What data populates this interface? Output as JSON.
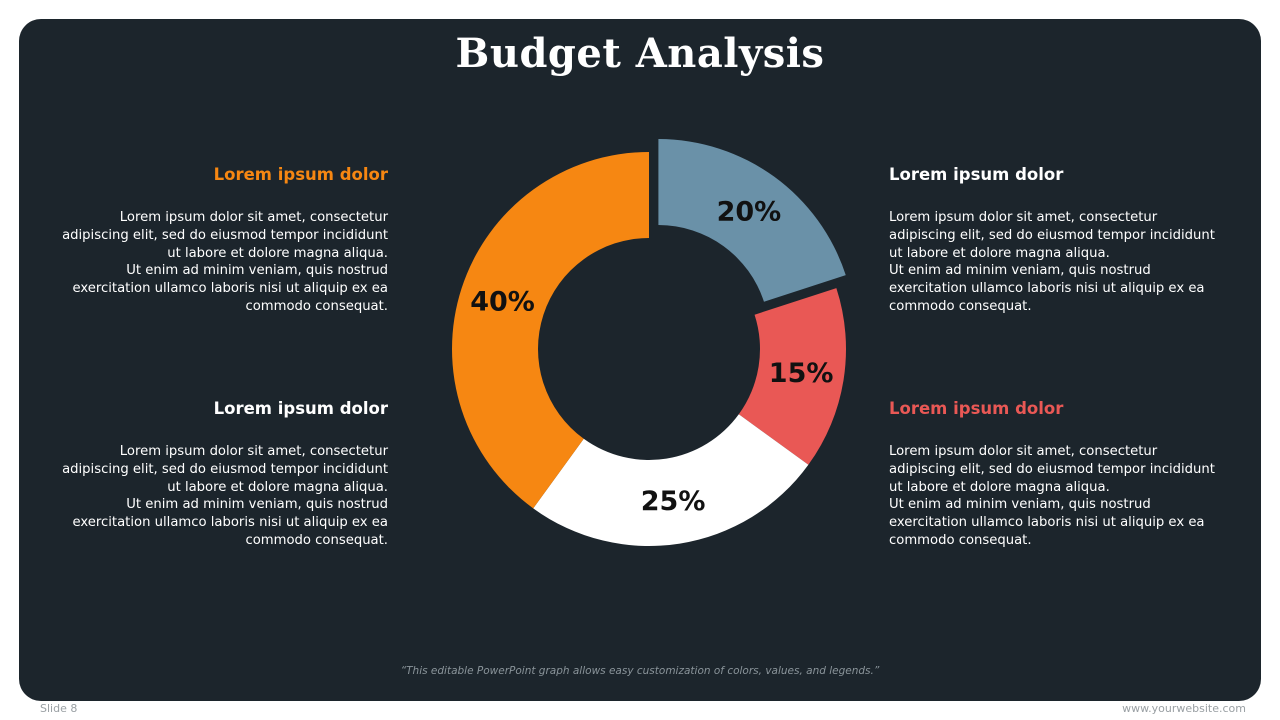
{
  "title": "Budget Analysis",
  "blocks": [
    {
      "heading": "Lorem ipsum dolor",
      "color": "#f68712",
      "body": "Lorem ipsum dolor sit amet, consectetur adipiscing elit, sed do eiusmod tempor incididunt ut labore et dolore magna aliqua.",
      "body2": "Ut enim ad minim veniam, quis nostrud exercitation ullamco laboris nisi ut aliquip ex ea commodo consequat."
    },
    {
      "heading": "Lorem ipsum dolor",
      "color": "#ffffff",
      "body": "Lorem ipsum dolor sit amet, consectetur adipiscing elit, sed do eiusmod tempor incididunt ut labore et dolore magna aliqua.",
      "body2": "Ut enim ad minim veniam, quis nostrud exercitation ullamco laboris nisi ut aliquip ex ea commodo consequat."
    },
    {
      "heading": "Lorem ipsum dolor",
      "color": "#ffffff",
      "body": "Lorem ipsum dolor sit amet, consectetur adipiscing elit, sed do eiusmod tempor incididunt ut labore et dolore magna aliqua.",
      "body2": "Ut enim ad minim veniam, quis nostrud exercitation ullamco laboris nisi ut aliquip ex ea commodo consequat."
    },
    {
      "heading": "Lorem ipsum dolor",
      "color": "#e95855",
      "body": "Lorem ipsum dolor sit amet, consectetur adipiscing elit, sed do eiusmod tempor incididunt ut labore et dolore magna aliqua.",
      "body2": "Ut enim ad minim veniam, quis nostrud exercitation ullamco laboris nisi ut aliquip ex ea commodo consequat."
    }
  ],
  "chart_data": {
    "type": "pie",
    "variant": "donut",
    "start": "top",
    "direction": "clockwise",
    "slices": [
      {
        "label": "20%",
        "value": 20,
        "color": "#6a91a8",
        "exploded": true
      },
      {
        "label": "15%",
        "value": 15,
        "color": "#e95855",
        "exploded": false
      },
      {
        "label": "25%",
        "value": 25,
        "color": "#ffffff",
        "exploded": false
      },
      {
        "label": "40%",
        "value": 40,
        "color": "#f68712",
        "exploded": false
      }
    ]
  },
  "footnote": "“This editable PowerPoint graph allows easy customization of colors, values, and legends.”",
  "slide_number": "Slide 8",
  "website": "www.yourwebsite.com"
}
